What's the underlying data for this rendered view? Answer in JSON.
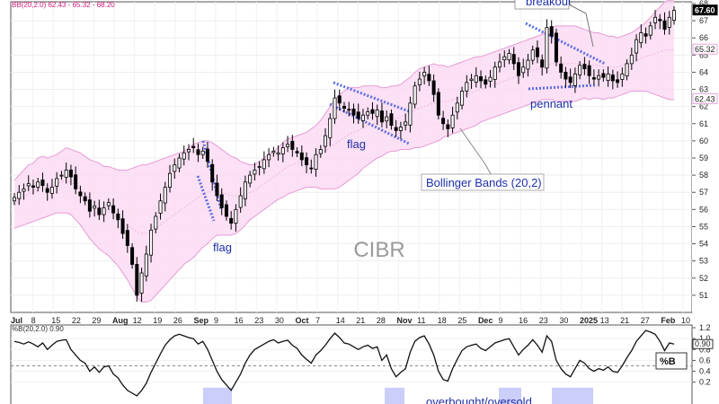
{
  "chart_data": [
    {
      "type": "candlestick",
      "header": "BB(20,2.0) 62.43 - 65.32 - 68.20",
      "watermark": "CIBR",
      "ylim": [
        50,
        68
      ],
      "yticks": [
        51,
        52,
        53,
        54,
        55,
        56,
        57,
        58,
        59,
        60,
        61,
        62,
        63,
        64,
        65,
        66,
        67,
        68
      ],
      "xlabels": [
        "Jul",
        "8",
        "15",
        "22",
        "29",
        "Aug",
        "12",
        "19",
        "26",
        "Sep",
        "9",
        "16",
        "23",
        "30",
        "Oct",
        "7",
        "14",
        "21",
        "28",
        "Nov",
        "11",
        "18",
        "25",
        "Dec",
        "9",
        "16",
        "23",
        "30",
        "2025",
        "13",
        "21",
        "27",
        "Feb",
        "10"
      ],
      "price_tags": [
        {
          "value": 67.6,
          "label": "67.60",
          "color": "#000000"
        },
        {
          "value": 65.32,
          "label": "65.32",
          "color": "#e9a6dc"
        },
        {
          "value": 62.43,
          "label": "62.43",
          "color": "#e9a6dc"
        }
      ],
      "annotations": [
        {
          "text": "breakout",
          "color": "#1f2fa8"
        },
        {
          "text": "pennant",
          "color": "#1f2fa8"
        },
        {
          "text": "flag",
          "color": "#1f2fa8"
        },
        {
          "text": "flag",
          "color": "#1f2fa8"
        },
        {
          "text": "Bollinger Bands (20,2)",
          "color": "#c21f8a"
        }
      ],
      "closes": [
        56.7,
        57.0,
        57.2,
        57.5,
        57.3,
        57.6,
        57.4,
        57.0,
        57.3,
        57.8,
        58.0,
        58.3,
        57.9,
        57.2,
        56.8,
        56.5,
        55.9,
        56.2,
        55.7,
        56.1,
        56.4,
        55.8,
        55.4,
        54.6,
        53.9,
        52.8,
        51.0,
        52.3,
        53.4,
        54.8,
        55.6,
        56.5,
        57.3,
        58.1,
        58.6,
        59.0,
        59.3,
        59.5,
        59.6,
        59.2,
        59.4,
        58.8,
        57.6,
        56.8,
        56.1,
        55.6,
        55.2,
        56.0,
        56.8,
        57.6,
        58.0,
        58.3,
        58.5,
        58.9,
        59.2,
        59.4,
        59.3,
        59.6,
        59.8,
        59.5,
        59.3,
        58.9,
        58.6,
        58.4,
        59.2,
        59.5,
        60.3,
        61.3,
        62.5,
        62.2,
        61.9,
        61.8,
        61.5,
        61.3,
        61.5,
        61.7,
        61.6,
        61.8,
        61.1,
        61.4,
        60.9,
        60.6,
        60.8,
        61.1,
        62.2,
        63.2,
        63.6,
        64.0,
        63.5,
        62.7,
        61.5,
        61.0,
        60.7,
        61.5,
        62.2,
        62.9,
        63.4,
        63.6,
        63.8,
        63.5,
        63.3,
        63.7,
        64.3,
        64.6,
        64.9,
        65.1,
        64.5,
        63.8,
        64.3,
        64.7,
        65.3,
        64.9,
        64.3,
        66.6,
        66.1,
        64.6,
        64.0,
        63.6,
        63.4,
        63.9,
        64.4,
        64.2,
        63.8,
        63.6,
        63.8,
        63.7,
        63.9,
        63.5,
        63.4,
        63.9,
        64.5,
        65.0,
        65.9,
        66.3,
        66.1,
        66.7,
        67.2,
        67.0,
        66.5,
        67.2,
        67.6
      ],
      "bb_middle": [
        56.3,
        56.5,
        56.7,
        56.9,
        57.0,
        57.2,
        57.3,
        57.3,
        57.4,
        57.5,
        57.6,
        57.7,
        57.6,
        57.4,
        57.2,
        56.9,
        56.6,
        56.4,
        56.2,
        56.0,
        55.9,
        55.7,
        55.5,
        55.3,
        55.1,
        54.9,
        54.7,
        54.6,
        54.6,
        54.7,
        54.9,
        55.1,
        55.3,
        55.5,
        55.7,
        55.9,
        56.1,
        56.3,
        56.5,
        56.7,
        56.9,
        57.0,
        57.1,
        57.1,
        57.0,
        56.9,
        56.8,
        56.8,
        56.8,
        56.9,
        57.0,
        57.1,
        57.3,
        57.5,
        57.7,
        57.9,
        58.1,
        58.3,
        58.5,
        58.6,
        58.7,
        58.8,
        58.9,
        59.0,
        59.1,
        59.2,
        59.4,
        59.6,
        59.8,
        60.0,
        60.2,
        60.4,
        60.5,
        60.6,
        60.8,
        60.9,
        61.0,
        61.1,
        61.1,
        61.2,
        61.3,
        61.3,
        61.4,
        61.5,
        61.6,
        61.8,
        61.9,
        62.0,
        62.1,
        62.2,
        62.2,
        62.3,
        62.3,
        62.4,
        62.5,
        62.6,
        62.7,
        62.8,
        62.9,
        63.0,
        63.1,
        63.2,
        63.3,
        63.4,
        63.5,
        63.6,
        63.7,
        63.8,
        63.9,
        64.0,
        64.1,
        64.2,
        64.3,
        64.4,
        64.5,
        64.5,
        64.5,
        64.5,
        64.5,
        64.5,
        64.5,
        64.5,
        64.4,
        64.4,
        64.4,
        64.3,
        64.3,
        64.3,
        64.3,
        64.4,
        64.5,
        64.6,
        64.7,
        64.8,
        64.9,
        65.0,
        65.1,
        65.2,
        65.3,
        65.3,
        65.3
      ],
      "bb_width": [
        1.4,
        1.5,
        1.6,
        1.7,
        1.7,
        1.8,
        1.8,
        1.7,
        1.7,
        1.7,
        1.8,
        1.9,
        1.9,
        2.0,
        2.1,
        2.2,
        2.3,
        2.4,
        2.5,
        2.5,
        2.6,
        2.7,
        2.8,
        3.0,
        3.2,
        3.5,
        3.8,
        4.0,
        4.0,
        4.0,
        3.9,
        3.8,
        3.7,
        3.6,
        3.5,
        3.4,
        3.3,
        3.3,
        3.3,
        3.2,
        3.1,
        3.0,
        2.8,
        2.6,
        2.5,
        2.4,
        2.3,
        2.2,
        2.0,
        1.8,
        1.6,
        1.5,
        1.5,
        1.5,
        1.5,
        1.5,
        1.5,
        1.6,
        1.6,
        1.6,
        1.6,
        1.6,
        1.6,
        1.7,
        1.8,
        2.0,
        2.2,
        2.4,
        2.6,
        2.7,
        2.7,
        2.7,
        2.6,
        2.5,
        2.4,
        2.3,
        2.2,
        2.1,
        2.0,
        1.9,
        1.9,
        1.9,
        1.9,
        2.0,
        2.1,
        2.2,
        2.3,
        2.3,
        2.3,
        2.3,
        2.2,
        2.1,
        2.0,
        2.0,
        2.0,
        2.0,
        2.0,
        2.0,
        2.0,
        1.9,
        1.9,
        1.9,
        1.9,
        1.9,
        1.9,
        1.9,
        1.9,
        1.9,
        1.9,
        1.9,
        1.9,
        1.9,
        1.9,
        2.0,
        2.1,
        2.2,
        2.2,
        2.2,
        2.2,
        2.2,
        2.1,
        2.0,
        2.0,
        1.9,
        1.9,
        1.9,
        1.8,
        1.8,
        1.7,
        1.7,
        1.7,
        1.7,
        1.8,
        1.9,
        2.0,
        2.2,
        2.4,
        2.6,
        2.8,
        2.9,
        2.9
      ]
    },
    {
      "type": "line",
      "header": "%B(20,2.0) 0.90",
      "legend": "%B",
      "ylim": [
        -0.2,
        1.25
      ],
      "yticks": [
        0.2,
        0.4,
        0.6,
        0.8,
        1.0,
        1.2
      ],
      "tag": {
        "value": 0.9,
        "label": "0.90"
      },
      "annotation": "overbought/oversold",
      "shaded_regions": 4,
      "values": [
        0.95,
        0.93,
        0.9,
        0.94,
        0.9,
        0.85,
        0.92,
        0.8,
        0.88,
        0.95,
        0.97,
        0.98,
        0.8,
        0.7,
        0.6,
        0.55,
        0.4,
        0.48,
        0.38,
        0.48,
        0.5,
        0.35,
        0.28,
        0.15,
        0.05,
        0.0,
        -0.05,
        0.05,
        0.18,
        0.38,
        0.55,
        0.72,
        0.88,
        0.98,
        1.05,
        1.08,
        1.05,
        1.02,
        1.0,
        0.9,
        0.95,
        0.8,
        0.6,
        0.4,
        0.25,
        0.15,
        0.05,
        0.2,
        0.35,
        0.55,
        0.7,
        0.8,
        0.85,
        0.9,
        0.95,
        0.98,
        0.92,
        0.95,
        0.97,
        0.88,
        0.82,
        0.7,
        0.62,
        0.55,
        0.7,
        0.78,
        0.88,
        1.0,
        1.1,
        1.02,
        0.92,
        0.9,
        0.85,
        0.8,
        0.85,
        0.88,
        0.82,
        0.85,
        0.6,
        0.7,
        0.45,
        0.3,
        0.38,
        0.45,
        0.75,
        0.95,
        1.02,
        1.05,
        0.9,
        0.7,
        0.4,
        0.25,
        0.22,
        0.45,
        0.62,
        0.78,
        0.85,
        0.88,
        0.9,
        0.82,
        0.78,
        0.85,
        0.92,
        0.95,
        0.98,
        1.0,
        0.85,
        0.7,
        0.8,
        0.88,
        0.98,
        0.88,
        0.75,
        1.05,
        0.95,
        0.6,
        0.45,
        0.35,
        0.3,
        0.45,
        0.6,
        0.55,
        0.45,
        0.4,
        0.45,
        0.42,
        0.48,
        0.4,
        0.38,
        0.5,
        0.65,
        0.78,
        0.95,
        1.05,
        1.15,
        1.12,
        1.08,
        0.95,
        0.78,
        0.92,
        0.9
      ]
    }
  ]
}
